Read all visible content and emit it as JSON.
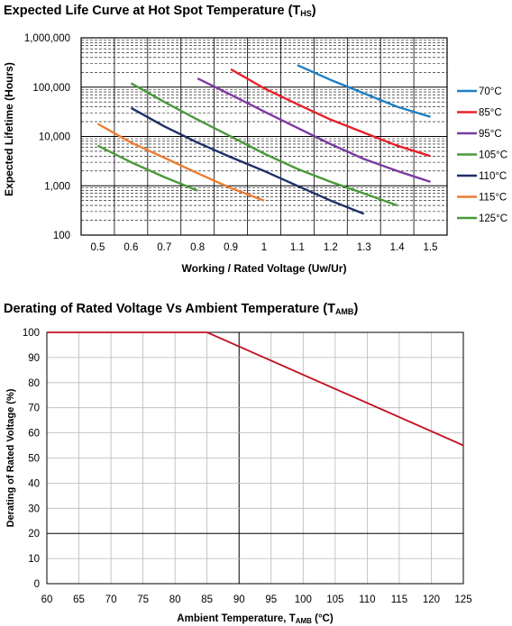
{
  "chart_data": [
    {
      "type": "line",
      "title": {
        "main": "Expected Life Curve at Hot Spot Temperature (T",
        "sub": "HS",
        "end": ")"
      },
      "xlabel": "Working / Rated Voltage (Uw/Ur)",
      "ylabel": "Expected Lifetime (Hours)",
      "y_scale": "log",
      "xlim": [
        0.45,
        1.55
      ],
      "ylim": [
        100,
        1000000
      ],
      "x_ticks": [
        "0.5",
        "0.6",
        "0.7",
        "0.8",
        "0.9",
        "1",
        "1.1",
        "1.2",
        "1.3",
        "1.4",
        "1.5"
      ],
      "y_ticks": [
        "100",
        "1,000",
        "10,000",
        "100,000",
        "1,000,000"
      ],
      "grid": true,
      "legend_position": "right",
      "series": [
        {
          "name": "70°C",
          "color": "#1f7fc4",
          "x": [
            1.1,
            1.2,
            1.3,
            1.4,
            1.5
          ],
          "y": [
            280000,
            140000,
            75000,
            40000,
            25000
          ]
        },
        {
          "name": "85°C",
          "color": "#e8202a",
          "x": [
            0.9,
            1.0,
            1.1,
            1.2,
            1.3,
            1.4,
            1.5
          ],
          "y": [
            230000,
            95000,
            45000,
            22000,
            12000,
            6500,
            4000
          ]
        },
        {
          "name": "95°C",
          "color": "#7b3ba0",
          "x": [
            0.8,
            0.9,
            1.0,
            1.1,
            1.2,
            1.3,
            1.4,
            1.5
          ],
          "y": [
            150000,
            70000,
            32000,
            15000,
            7000,
            3500,
            2000,
            1200
          ]
        },
        {
          "name": "105°C",
          "color": "#4a9a3b",
          "x": [
            0.6,
            0.7,
            0.8,
            0.9,
            1.0,
            1.1,
            1.2,
            1.3,
            1.4
          ],
          "y": [
            120000,
            50000,
            22000,
            10000,
            4500,
            2200,
            1200,
            700,
            400
          ]
        },
        {
          "name": "110°C",
          "color": "#1f2e68",
          "x": [
            0.6,
            0.7,
            0.8,
            0.9,
            1.0,
            1.1,
            1.2,
            1.3
          ],
          "y": [
            38000,
            16000,
            7500,
            3800,
            2000,
            1000,
            500,
            270
          ]
        },
        {
          "name": "115°C",
          "color": "#ed7d31",
          "x": [
            0.5,
            0.6,
            0.7,
            0.8,
            0.9,
            1.0
          ],
          "y": [
            18000,
            7500,
            3700,
            1800,
            900,
            500
          ]
        },
        {
          "name": "125°C",
          "color": "#4a9a3b",
          "x": [
            0.5,
            0.6,
            0.7,
            0.8
          ],
          "y": [
            6500,
            3000,
            1500,
            800
          ]
        }
      ]
    },
    {
      "type": "line",
      "title": {
        "main": "Derating of Rated Voltage Vs Ambient Temperature (T",
        "sub": "AMB",
        "end": ")"
      },
      "xlabel": {
        "main": "Ambient Temperature, T",
        "sub": "AMB",
        "end": " (°C)"
      },
      "ylabel": "Derating of Rated Voltage (%)",
      "xlim": [
        60,
        125
      ],
      "ylim": [
        0,
        100
      ],
      "x_ticks": [
        "60",
        "65",
        "70",
        "75",
        "80",
        "85",
        "90",
        "95",
        "100",
        "105",
        "110",
        "115",
        "120",
        "125"
      ],
      "y_ticks": [
        "0",
        "10",
        "20",
        "30",
        "40",
        "50",
        "60",
        "70",
        "80",
        "90",
        "100"
      ],
      "grid": true,
      "series": [
        {
          "color": "#c0101e",
          "x": [
            60,
            85,
            125
          ],
          "y": [
            100,
            100,
            55
          ]
        }
      ]
    }
  ]
}
